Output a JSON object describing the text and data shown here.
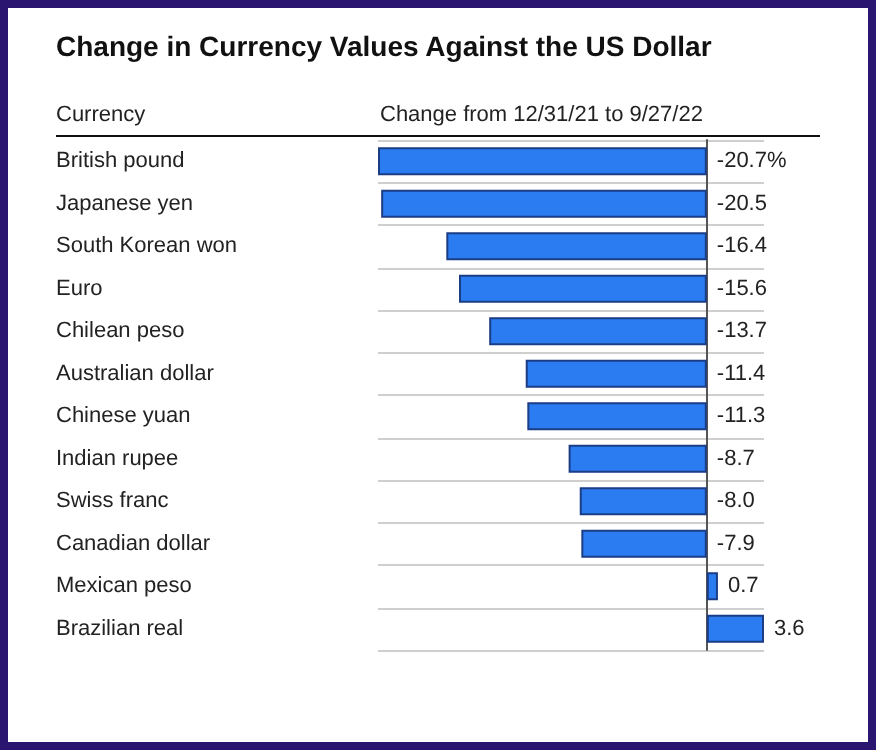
{
  "chart_data": {
    "type": "bar",
    "orientation": "horizontal",
    "title": "Change in Currency Values Against the US Dollar",
    "ylabel": "Currency",
    "xlabel": "Change from 12/31/21 to 9/27/22",
    "categories": [
      "British pound",
      "Japanese yen",
      "South Korean won",
      "Euro",
      "Chilean peso",
      "Australian dollar",
      "Chinese yuan",
      "Indian rupee",
      "Swiss franc",
      "Canadian dollar",
      "Mexican peso",
      "Brazilian real"
    ],
    "values": [
      -20.7,
      -20.5,
      -16.4,
      -15.6,
      -13.7,
      -11.4,
      -11.3,
      -8.7,
      -8.0,
      -7.9,
      0.7,
      3.6
    ],
    "value_labels": [
      "-20.7%",
      "-20.5",
      "-16.4",
      "-15.6",
      "-13.7",
      "-11.4",
      "-11.3",
      "-8.7",
      "-8.0",
      "-7.9",
      "0.7",
      "3.6"
    ],
    "color": "#2b7cf0",
    "grid": "y"
  }
}
